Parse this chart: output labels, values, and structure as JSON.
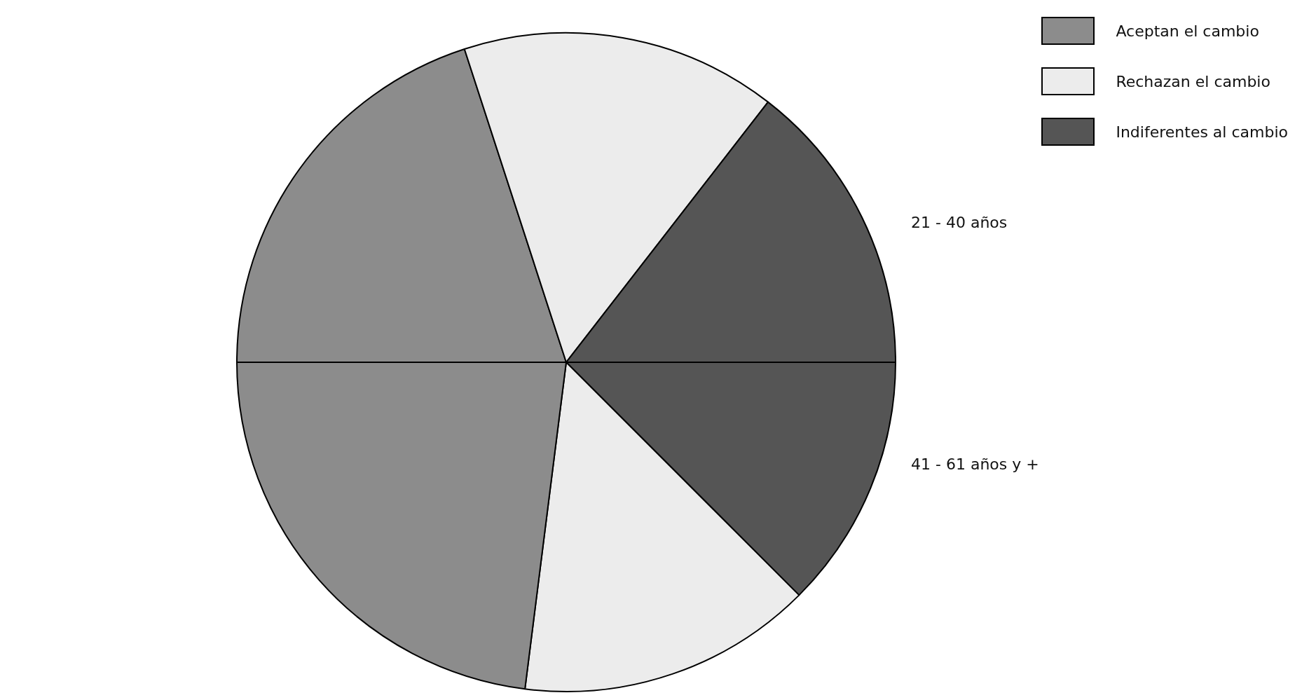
{
  "chart_data": {
    "type": "pie",
    "categories": [
      "Aceptan el cambio",
      "Rechazan el cambio",
      "Indiferentes al cambio",
      null,
      null,
      null
    ],
    "values": [
      20,
      15.5,
      14.5,
      12.5,
      14.5,
      23
    ],
    "colors": [
      "#8c8c8c",
      "#ececec",
      "#555555",
      "#555555",
      "#ececec",
      "#8c8c8c"
    ],
    "annotations": [
      "21 - 40 años",
      "41 - 61 años y +"
    ],
    "legend": "top right"
  }
}
